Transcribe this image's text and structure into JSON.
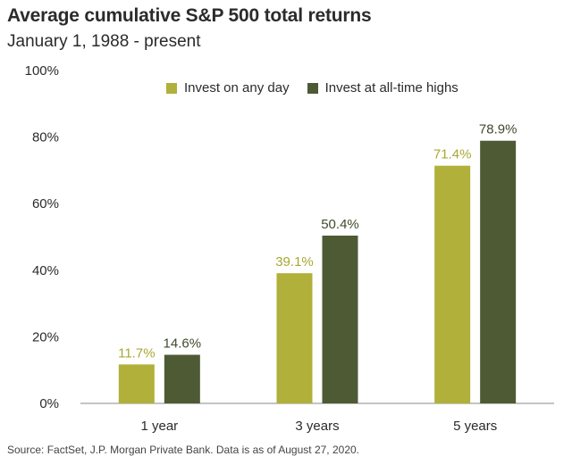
{
  "header": {
    "title": "Average cumulative S&P 500 total returns",
    "subtitle": "January 1, 1988 - present"
  },
  "footer": {
    "source": "Source: FactSet, J.P. Morgan Private Bank. Data is as of August 27, 2020."
  },
  "colors": {
    "series_1": "#b0b03a",
    "series_2": "#4d5a34",
    "axis": "#888888",
    "text": "#2b2b2b"
  },
  "chart_data": {
    "type": "bar",
    "title": "Average cumulative S&P 500 total returns",
    "subtitle": "January 1, 1988 - present",
    "xlabel": "",
    "ylabel": "",
    "categories": [
      "1 year",
      "3 years",
      "5 years"
    ],
    "series": [
      {
        "name": "Invest on any day",
        "values": [
          11.7,
          39.1,
          71.4
        ],
        "labels": [
          "11.7%",
          "39.1%",
          "71.4%"
        ]
      },
      {
        "name": "Invest at all-time highs",
        "values": [
          14.6,
          50.4,
          78.9
        ],
        "labels": [
          "14.6%",
          "50.4%",
          "78.9%"
        ]
      }
    ],
    "ylim": [
      0,
      100
    ],
    "yticks": [
      0,
      20,
      40,
      60,
      80,
      100
    ],
    "ytick_labels": [
      "0%",
      "20%",
      "40%",
      "60%",
      "80%",
      "100%"
    ],
    "grid": false,
    "legend_position": "top"
  }
}
